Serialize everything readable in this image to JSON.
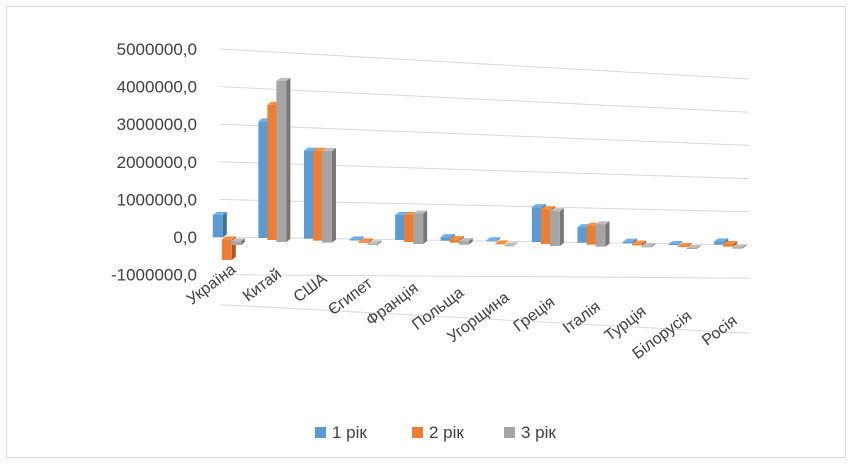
{
  "chart_data": {
    "type": "bar",
    "categories": [
      "Україна",
      "Китай",
      "США",
      "Єгипет",
      "Франція",
      "Польща",
      "Угорщина",
      "Греція",
      "Італія",
      "Турція",
      "Білорусія",
      "Росія"
    ],
    "series": [
      {
        "name": "1 рік",
        "values": [
          600000,
          3150000,
          2400000,
          -30000,
          700000,
          100000,
          30000,
          1000000,
          450000,
          50000,
          -20000,
          100000
        ]
      },
      {
        "name": "2 рік",
        "values": [
          -550000,
          3650000,
          2450000,
          -40000,
          750000,
          100000,
          0,
          1000000,
          550000,
          50000,
          -30000,
          80000
        ]
      },
      {
        "name": "3 рік",
        "values": [
          -100000,
          4350000,
          2500000,
          -40000,
          850000,
          100000,
          -10000,
          1000000,
          650000,
          30000,
          -30000,
          40000
        ]
      }
    ],
    "colors": [
      "#5b9bd5",
      "#ed7d31",
      "#a5a5a5"
    ],
    "yticks": [
      "5000000,0",
      "4000000,0",
      "3000000,0",
      "2000000,0",
      "1000000,0",
      "0,0",
      "-1000000,0"
    ],
    "ylim": [
      -1000000,
      5000000
    ],
    "grid": true,
    "legend": "bottom",
    "title": "",
    "xlabel": "",
    "ylabel": ""
  }
}
